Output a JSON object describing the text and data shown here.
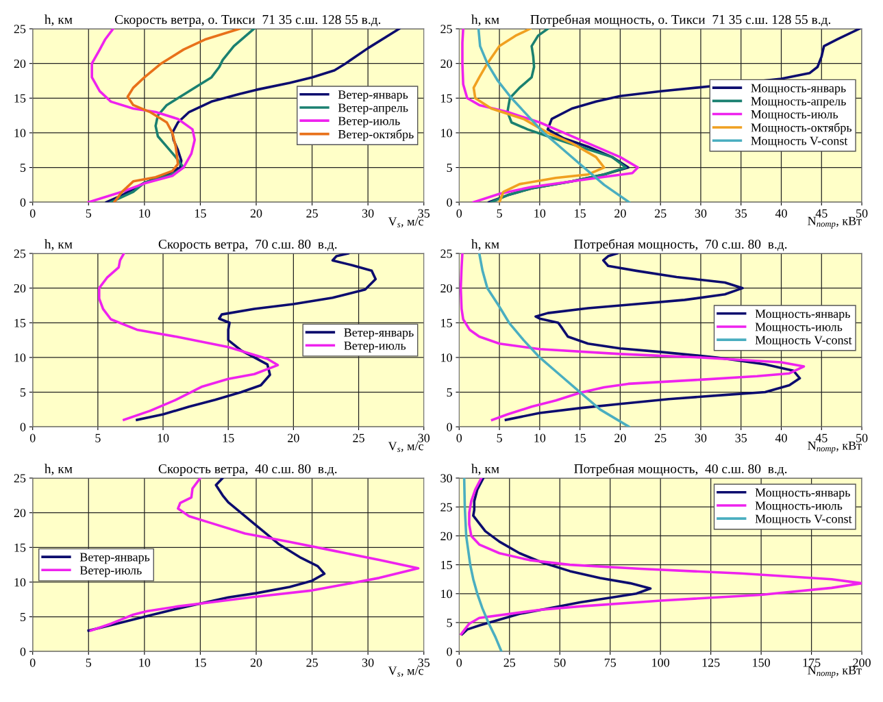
{
  "chart_data": [
    {
      "type": "line",
      "title": "Скорость ветра, о. Тикси  71 35 с.ш. 128 55 в.д.",
      "xlabel": "V$_{s}$, м/с",
      "ylabel": "h, км",
      "xlim": [
        0,
        35
      ],
      "ylim": [
        0,
        25
      ],
      "xticks": [
        0,
        5,
        10,
        15,
        20,
        25,
        30,
        35
      ],
      "yticks": [
        0,
        5,
        10,
        15,
        20,
        25
      ],
      "grid": true,
      "legend": "right",
      "series": [
        {
          "name": "Ветер-январь",
          "color": "#0c0c6e",
          "x": [
            6.6,
            8,
            10,
            12,
            13.2,
            13.3,
            13,
            12.6,
            12.5,
            13,
            14,
            16,
            18.5,
            20,
            23,
            25,
            27,
            28,
            30,
            32.8
          ],
          "values": [
            0,
            1,
            2.8,
            4,
            5,
            6,
            7.5,
            9,
            10,
            11.5,
            13,
            14.5,
            15.6,
            16.2,
            17.2,
            18,
            19,
            20,
            22.2,
            25
          ]
        },
        {
          "name": "Ветер-апрель",
          "color": "#1a8070",
          "x": [
            7,
            9,
            10,
            12.5,
            13.5,
            12.8,
            12,
            11.2,
            11,
            11.2,
            12,
            13.5,
            15,
            16,
            16.7,
            17,
            18,
            19.8
          ],
          "values": [
            0,
            1.5,
            2.8,
            4,
            5,
            6.5,
            8,
            9.5,
            11,
            12.5,
            14,
            15.5,
            17,
            18,
            19.5,
            20.5,
            22.5,
            25
          ]
        },
        {
          "name": "Ветер-июль",
          "color": "#ee22ee",
          "x": [
            5,
            8,
            10,
            12.5,
            13.5,
            14.2,
            14.5,
            14.3,
            13,
            11,
            9,
            7,
            6,
            5.3,
            5.3,
            6,
            6.5,
            7.2
          ],
          "values": [
            0,
            1.5,
            2.7,
            3.8,
            5,
            7,
            9,
            10.5,
            12,
            13,
            13.5,
            14.5,
            16,
            18,
            20,
            22,
            23.5,
            25
          ]
        },
        {
          "name": "Ветер-октябрь",
          "color": "#e8711a",
          "x": [
            7.3,
            8,
            9,
            11,
            12.5,
            13,
            12.8,
            12.5,
            12,
            10.5,
            9,
            8.5,
            9,
            10,
            11.5,
            13.5,
            15.5,
            18.5
          ],
          "values": [
            0,
            1.5,
            3,
            3.6,
            4.5,
            5.5,
            8,
            10,
            11.5,
            13,
            14,
            15.2,
            16.5,
            18,
            20,
            22,
            23.5,
            25
          ]
        }
      ]
    },
    {
      "type": "line",
      "title": "Потребная мощность, о. Тикси  71 35 с.ш. 128 55 в.д.",
      "xlabel": "N$_{потр}$, кВт",
      "ylabel": "h, км",
      "xlim": [
        0,
        50
      ],
      "ylim": [
        0,
        25
      ],
      "xticks": [
        0,
        5,
        10,
        15,
        20,
        25,
        30,
        35,
        40,
        45,
        50
      ],
      "yticks": [
        0,
        5,
        10,
        15,
        20,
        25
      ],
      "grid": true,
      "legend": "right",
      "series": [
        {
          "name": "Мощность-январь",
          "color": "#0c0c6e",
          "x": [
            3.7,
            6,
            9,
            14,
            18,
            21,
            19,
            16,
            13,
            11,
            11.5,
            14,
            17,
            20,
            25,
            32,
            40,
            43.5,
            44.5,
            45,
            45.3,
            47,
            49.7
          ],
          "values": [
            0,
            1,
            2,
            3,
            4,
            5,
            6.5,
            8,
            9.2,
            10.5,
            12,
            13.5,
            14.5,
            15.3,
            16,
            16.8,
            17.8,
            18.6,
            19.5,
            21,
            22.5,
            23.5,
            25
          ]
        },
        {
          "name": "Мощность-апрель",
          "color": "#1a8070",
          "x": [
            4,
            6,
            9,
            14,
            18,
            20.7,
            19,
            15,
            11,
            8.5,
            6.5,
            6,
            6.3,
            7.5,
            9,
            9.3,
            9.2,
            9,
            9.8,
            11
          ],
          "values": [
            0,
            1,
            2,
            3,
            4,
            5,
            6.5,
            8,
            9.5,
            10.5,
            11.5,
            13,
            15,
            16.5,
            18,
            19.5,
            21,
            22.5,
            24,
            25
          ]
        },
        {
          "name": "Мощность-июль",
          "color": "#ee22ee",
          "x": [
            1.8,
            5,
            9,
            14,
            21.5,
            22.2,
            20,
            16,
            13,
            10,
            6,
            2.5,
            1,
            0.5,
            0.4,
            0.4,
            0.5
          ],
          "values": [
            0,
            1.2,
            2.2,
            3,
            4.2,
            5,
            6.5,
            8.5,
            10,
            11.5,
            13,
            14,
            15,
            17,
            20,
            23,
            25
          ]
        },
        {
          "name": "Мощность-октябрь",
          "color": "#f0a020",
          "x": [
            5,
            5.5,
            7.5,
            12,
            16,
            18,
            17,
            14,
            11,
            8,
            4,
            2,
            1.8,
            2.5,
            3.5,
            5,
            7,
            8.8
          ],
          "values": [
            0,
            1.5,
            2.6,
            3.5,
            4,
            5,
            6.5,
            8.5,
            10,
            12,
            13.5,
            15,
            16.5,
            18,
            20,
            22.5,
            24,
            25
          ]
        },
        {
          "name": "Мощность V-const",
          "color": "#4aaec0",
          "x": [
            21.1,
            18,
            15.5,
            13,
            10.5,
            8.5,
            6.5,
            4.8,
            3.5,
            2.6,
            2.4
          ],
          "values": [
            0,
            2.5,
            5,
            7.5,
            10,
            12.5,
            15,
            17.5,
            20,
            22.5,
            25
          ]
        }
      ]
    },
    {
      "type": "line",
      "title": "Скорость ветра,  70 с.ш. 80  в.д.",
      "xlabel": "V$_{s}$, м/с",
      "ylabel": "h, км",
      "xlim": [
        0,
        30
      ],
      "ylim": [
        0,
        25
      ],
      "xticks": [
        0,
        5,
        10,
        15,
        20,
        25,
        30
      ],
      "yticks": [
        0,
        5,
        10,
        15,
        20,
        25
      ],
      "grid": true,
      "legend": "right",
      "series": [
        {
          "name": "Ветер-январь",
          "color": "#0c0c6e",
          "x": [
            8,
            10,
            12,
            14,
            16,
            17.5,
            18.2,
            18,
            17,
            16,
            15,
            15,
            15.1,
            14.3,
            14.5,
            17,
            20,
            23,
            25.5,
            26.3,
            26,
            24.5,
            23,
            23.3,
            24.2
          ],
          "values": [
            1,
            1.8,
            2.9,
            3.9,
            5,
            6,
            7.5,
            9,
            10,
            11,
            12.5,
            14,
            15,
            15.6,
            16.2,
            17,
            17.7,
            18.6,
            19.8,
            21.3,
            22.5,
            23.3,
            24,
            24.6,
            25
          ]
        },
        {
          "name": "Ветер-июль",
          "color": "#ee22ee",
          "x": [
            7,
            9,
            11,
            13,
            15,
            17,
            18.8,
            18,
            15,
            11,
            8,
            6,
            5.4,
            5.1,
            5.1,
            5.7,
            6.6,
            6.7,
            7
          ],
          "values": [
            1,
            2.3,
            3.9,
            5.8,
            6.9,
            7.6,
            8.9,
            9.8,
            11.5,
            13,
            14,
            15.5,
            17,
            18.5,
            20,
            21.5,
            23,
            24,
            25
          ]
        }
      ]
    },
    {
      "type": "line",
      "title": "Потребная мощность,  70 с.ш. 80  в.д.",
      "xlabel": "N$_{потр}$, кВт",
      "ylabel": "h, км",
      "xlim": [
        0,
        50
      ],
      "ylim": [
        0,
        25
      ],
      "xticks": [
        0,
        5,
        10,
        15,
        20,
        25,
        30,
        35,
        40,
        45,
        50
      ],
      "yticks": [
        0,
        5,
        10,
        15,
        20,
        25
      ],
      "grid": true,
      "legend": "right",
      "series": [
        {
          "name": "Мощность-январь",
          "color": "#0c0c6e",
          "x": [
            5.8,
            10,
            15,
            20,
            26,
            33,
            38,
            41,
            42.3,
            41.5,
            38,
            32,
            25,
            20,
            16,
            13.5,
            12.8,
            12.3,
            10,
            9.5,
            11,
            16,
            21,
            28,
            33,
            35.2,
            33,
            27,
            22,
            18.5,
            17.9,
            18.5,
            19.6
          ],
          "values": [
            1,
            2,
            2.7,
            3.3,
            4,
            4.6,
            5,
            6,
            7,
            8.1,
            9,
            10,
            10.8,
            11.3,
            12,
            13,
            14.2,
            15,
            15.6,
            15.9,
            16.4,
            17.1,
            17.6,
            18.3,
            19.1,
            20,
            20.8,
            21.6,
            22.5,
            23.2,
            24,
            24.6,
            25
          ]
        },
        {
          "name": "Мощность-июль",
          "color": "#ee22ee",
          "x": [
            4.1,
            6,
            9,
            12,
            15,
            18,
            21,
            30,
            37,
            41,
            42.8,
            40,
            30,
            20,
            10,
            5,
            2.5,
            1.3,
            0.5,
            0.3,
            0.2,
            0.3,
            0.4
          ],
          "values": [
            1,
            1.8,
            2.9,
            3.8,
            4.9,
            5.7,
            6.2,
            6.8,
            7.3,
            7.7,
            8.7,
            9.3,
            10,
            10.5,
            11.2,
            12,
            13,
            14,
            15.5,
            17,
            20,
            23,
            25
          ]
        },
        {
          "name": "Мощность V-const",
          "color": "#4aaec0",
          "x": [
            21.1,
            17.5,
            15,
            12.5,
            10,
            8,
            6.2,
            4.9,
            3.5,
            2.9,
            2.5
          ],
          "values": [
            0,
            2.5,
            5,
            7.5,
            10,
            12.5,
            15,
            17.5,
            20,
            22.5,
            25
          ]
        }
      ]
    },
    {
      "type": "line",
      "title": "Скорость ветра,  40 с.ш. 80  в.д.",
      "xlabel": "V$_{s}$, м/с",
      "ylabel": "h, км",
      "xlim": [
        0,
        35
      ],
      "ylim": [
        0,
        25
      ],
      "xticks": [
        0,
        5,
        10,
        15,
        20,
        25,
        30,
        35
      ],
      "yticks": [
        0,
        5,
        10,
        15,
        20,
        25
      ],
      "grid": true,
      "legend": "left",
      "series": [
        {
          "name": "Ветер-январь",
          "color": "#0c0c6e",
          "x": [
            5,
            7.5,
            10,
            12.5,
            15,
            17.5,
            20,
            23,
            25,
            26.1,
            25.5,
            24,
            22,
            20.5,
            19,
            17.5,
            17,
            16.4,
            17
          ],
          "values": [
            3,
            4,
            5,
            6,
            6.9,
            7.8,
            8.4,
            9.3,
            10.2,
            11.2,
            12.3,
            13.5,
            15.5,
            17.5,
            19.5,
            21.5,
            22.5,
            24,
            25
          ]
        },
        {
          "name": "Ветер-июль",
          "color": "#ee22ee",
          "x": [
            5.2,
            7,
            9,
            10.2,
            13,
            17,
            20,
            25,
            28,
            31,
            34.5,
            31,
            27,
            23,
            19,
            16,
            14,
            13,
            13.2,
            14.2,
            14.3,
            15
          ],
          "values": [
            3,
            4,
            5.3,
            5.8,
            6.5,
            7.3,
            7.9,
            8.8,
            9.7,
            10.6,
            12,
            13.2,
            14.5,
            15.8,
            17,
            18.5,
            19.5,
            20.6,
            21.4,
            22.2,
            23.5,
            25
          ]
        }
      ]
    },
    {
      "type": "line",
      "title": "Потребная мощность,  40 с.ш. 80  в.д.",
      "xlabel": "N$_{потр}$, кВт",
      "ylabel": "h, км",
      "xlim": [
        0,
        200
      ],
      "ylim": [
        0,
        30
      ],
      "xticks": [
        0,
        25,
        50,
        75,
        100,
        125,
        150,
        175,
        200
      ],
      "yticks": [
        0,
        5,
        10,
        15,
        20,
        25,
        30
      ],
      "grid": true,
      "legend": "top right",
      "series": [
        {
          "name": "Мощность-январь",
          "color": "#0c0c6e",
          "x": [
            1.5,
            4,
            10,
            20,
            30,
            45,
            60,
            75,
            88,
            95,
            85,
            70,
            55,
            42,
            30,
            20,
            13,
            7,
            7.5,
            7.5,
            9,
            12
          ],
          "values": [
            3,
            3.8,
            4.5,
            5.5,
            6.5,
            7.5,
            8.5,
            9.3,
            10,
            10.9,
            11.8,
            12.7,
            13.9,
            15.3,
            17,
            19,
            20.8,
            23.5,
            24.5,
            26,
            28,
            30
          ]
        },
        {
          "name": "Мощность-июль",
          "color": "#ee22ee",
          "x": [
            1,
            5,
            10,
            25,
            40,
            60,
            100,
            150,
            185,
            200,
            185,
            140,
            90,
            55,
            35,
            20,
            10,
            6,
            5,
            5,
            6,
            8,
            11
          ],
          "values": [
            3,
            4.8,
            5.8,
            6.5,
            7.2,
            7.8,
            8.8,
            9.8,
            11,
            11.8,
            12.5,
            13.5,
            14.3,
            15,
            15.8,
            17,
            18.5,
            20,
            22,
            24,
            26,
            28,
            30
          ]
        },
        {
          "name": "Мощность V-const",
          "color": "#4aaec0",
          "x": [
            21,
            18,
            14.5,
            11.5,
            9,
            7,
            5.5,
            4.5,
            3.5,
            2.8,
            2.5
          ],
          "values": [
            0,
            2.5,
            5,
            7.5,
            10,
            12.5,
            15,
            17.5,
            20,
            25,
            30
          ]
        }
      ]
    }
  ]
}
